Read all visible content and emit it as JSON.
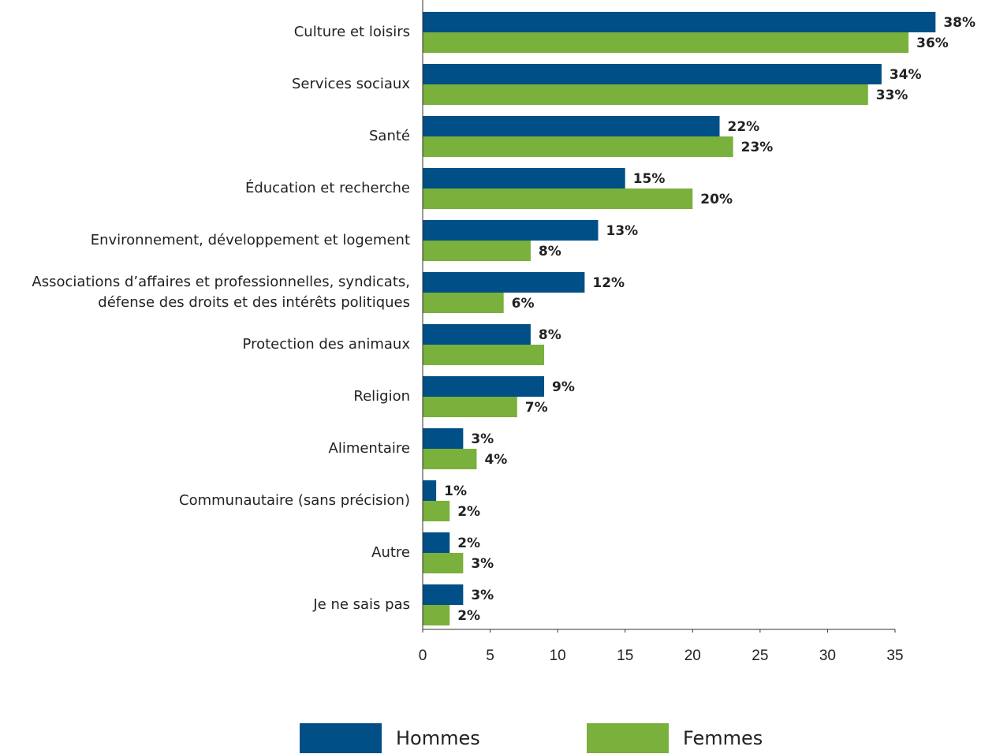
{
  "chart_data": {
    "type": "barh",
    "categories": [
      "Culture et loisirs",
      "Services sociaux",
      "Santé",
      "Éducation et recherche",
      "Environnement, développement et logement",
      "Associations d’affaires et professionnelles, syndicats,\ndéfense des droits et des intérêts politiques",
      "Protection des animaux",
      "Religion",
      "Alimentaire",
      "Communautaire (sans précision)",
      "Autre",
      "Je ne sais pas"
    ],
    "series": [
      {
        "name": "Hommes",
        "color": "#004f86",
        "values": [
          38,
          34,
          22,
          15,
          13,
          12,
          8,
          9,
          3,
          1,
          2,
          3
        ],
        "value_labels": [
          "38%",
          "34%",
          "22%",
          "15%",
          "13%",
          "12%",
          "8%",
          "9%",
          "3%",
          "1%",
          "2%",
          "3%"
        ]
      },
      {
        "name": "Femmes",
        "color": "#7ab03c",
        "values": [
          36,
          33,
          23,
          20,
          8,
          6,
          9,
          7,
          4,
          2,
          3,
          2
        ],
        "value_labels": [
          "36%",
          "33%",
          "23%",
          "20%",
          "8%",
          "6%",
          null,
          "7%",
          "4%",
          "2%",
          "3%",
          "2%"
        ]
      }
    ],
    "xlim": [
      0,
      35
    ],
    "xticks": [
      0,
      5,
      10,
      15,
      20,
      25,
      30,
      35
    ]
  }
}
